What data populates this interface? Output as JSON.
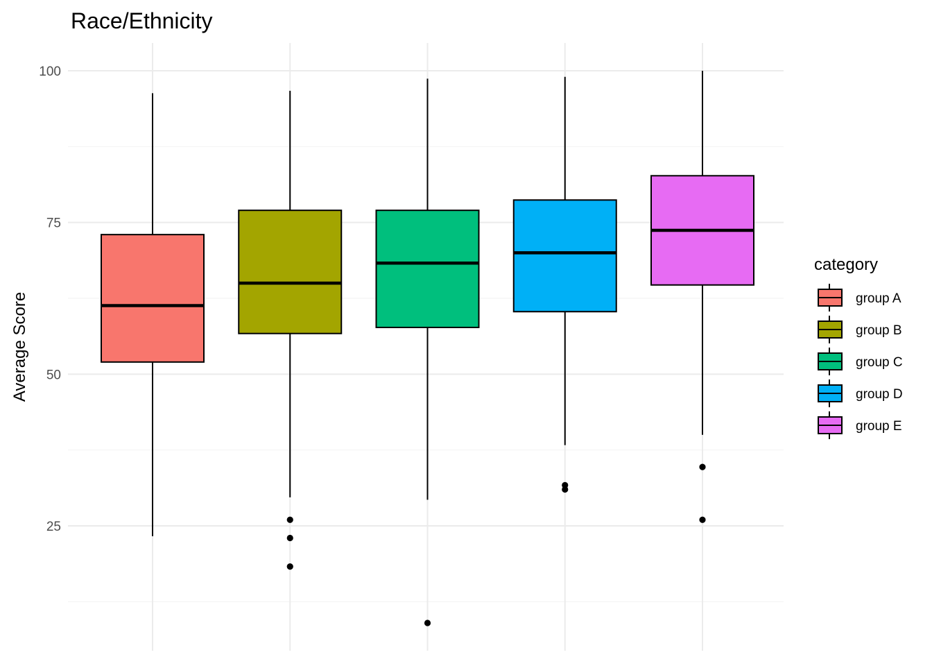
{
  "chart_data": {
    "type": "boxplot",
    "title": "Race/Ethnicity",
    "xlabel": "",
    "ylabel": "Average Score",
    "ylim": [
      5,
      104
    ],
    "y_ticks": [
      25,
      50,
      75,
      100
    ],
    "grid": true,
    "legend": {
      "title": "category",
      "position": "right"
    },
    "categories": [
      "group A",
      "group B",
      "group C",
      "group D",
      "group E"
    ],
    "series": [
      {
        "name": "group A",
        "color": "#F8766D",
        "whisker_low": 23.3,
        "q1": 52.0,
        "median": 61.3,
        "q3": 73.0,
        "whisker_high": 96.3,
        "outliers": []
      },
      {
        "name": "group B",
        "color": "#A3A500",
        "whisker_low": 29.7,
        "q1": 56.7,
        "median": 65.0,
        "q3": 77.0,
        "whisker_high": 96.7,
        "outliers": [
          26.0,
          23.0,
          18.3
        ]
      },
      {
        "name": "group C",
        "color": "#00BF7D",
        "whisker_low": 29.3,
        "q1": 57.7,
        "median": 68.3,
        "q3": 77.0,
        "whisker_high": 98.7,
        "outliers": [
          9.0
        ]
      },
      {
        "name": "group D",
        "color": "#00B0F6",
        "whisker_low": 38.3,
        "q1": 60.3,
        "median": 70.0,
        "q3": 78.7,
        "whisker_high": 99.0,
        "outliers": [
          31.7,
          31.0
        ]
      },
      {
        "name": "group E",
        "color": "#E76BF3",
        "whisker_low": 40.0,
        "q1": 64.7,
        "median": 73.7,
        "q3": 82.7,
        "whisker_high": 100.0,
        "outliers": [
          34.7,
          26.0
        ]
      }
    ]
  }
}
